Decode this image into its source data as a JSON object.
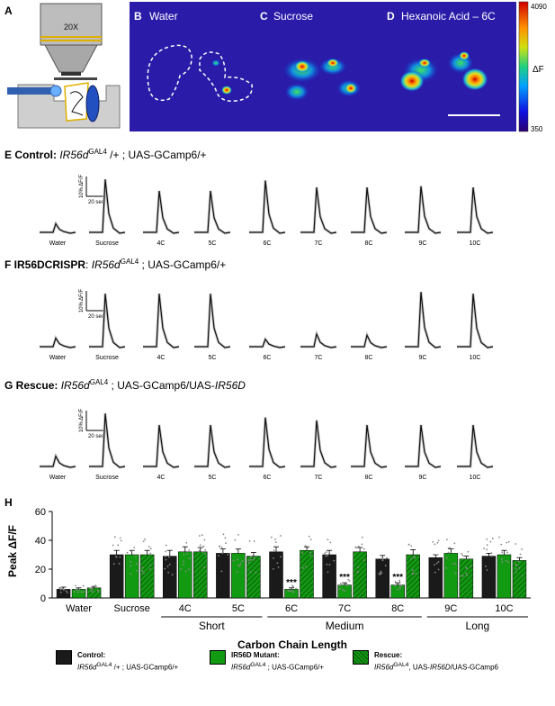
{
  "panels": {
    "A": "A",
    "B": {
      "letter": "B",
      "title": "Water"
    },
    "C": {
      "letter": "C",
      "title": "Sucrose"
    },
    "D": {
      "letter": "D",
      "title": "Hexanoic Acid – 6C"
    },
    "colorbar": {
      "max": "4090",
      "min": "350",
      "label": "ΔF"
    },
    "objective": "20X"
  },
  "rows": [
    {
      "letter": "E",
      "prefix": "Control: ",
      "genotype_bold": "",
      "genotype_italic": "IR56d",
      "sup": "GAL4",
      "suffix": " /+ ; UAS-GCamp6/+",
      "heights": [
        0.15,
        0.92,
        0.72,
        0.72,
        0.9,
        0.78,
        0.78,
        0.8,
        0.78
      ]
    },
    {
      "letter": "F",
      "prefix": "IR56DCRISPR",
      "genotype_bold": ": ",
      "genotype_italic": "IR56d",
      "sup": "GAL4",
      "suffix": " ; UAS-GCamp6/+",
      "heights": [
        0.15,
        0.92,
        0.92,
        0.92,
        0.13,
        0.22,
        0.2,
        0.95,
        0.92
      ]
    },
    {
      "letter": "G",
      "prefix": "Rescue: ",
      "genotype_bold": "",
      "genotype_italic": "IR56d",
      "sup": "GAL4",
      "suffix": " ; UAS-GCamp6/UAS-",
      "suffix_italic": "IR56D",
      "heights": [
        0.18,
        0.92,
        0.72,
        0.72,
        0.85,
        0.8,
        0.72,
        0.72,
        0.72
      ]
    }
  ],
  "trace_labels": [
    "Water",
    "Sucrose",
    "4C",
    "5C",
    "6C",
    "7C",
    "8C",
    "9C",
    "10C"
  ],
  "scale_bar": {
    "y": "10% ΔF/F",
    "x": "20 sec"
  },
  "chart_data": {
    "type": "bar",
    "panel": "H",
    "ylabel": "Peak ΔF/F",
    "xlabel": "Carbon Chain Length",
    "ylim": [
      0,
      60
    ],
    "yticks": [
      0,
      20,
      40,
      60
    ],
    "categories": [
      "Water",
      "Sucrose",
      "4C",
      "5C",
      "6C",
      "7C",
      "8C",
      "9C",
      "10C"
    ],
    "groups": [
      {
        "label": "Short",
        "categories": [
          "4C",
          "5C"
        ]
      },
      {
        "label": "Medium",
        "categories": [
          "6C",
          "7C",
          "8C"
        ]
      },
      {
        "label": "Long",
        "categories": [
          "9C",
          "10C"
        ]
      }
    ],
    "series": [
      {
        "name": "Control",
        "values": [
          6,
          30,
          29,
          31,
          32,
          30,
          27,
          28,
          29
        ],
        "errors": [
          1.5,
          3,
          4,
          3,
          3.5,
          3,
          2.5,
          2,
          2
        ],
        "color": "#1a1a1a",
        "pattern": "solid"
      },
      {
        "name": "IR56D Mutant",
        "values": [
          6,
          30,
          32,
          31,
          6,
          9,
          9,
          31,
          30
        ],
        "errors": [
          1,
          3,
          3.5,
          3,
          1,
          1.5,
          1.5,
          3,
          3
        ],
        "color": "#129a12",
        "pattern": "solid"
      },
      {
        "name": "Rescue",
        "values": [
          7,
          30,
          32,
          29,
          33,
          32,
          30,
          27,
          26
        ],
        "errors": [
          1,
          3,
          3,
          2.5,
          2.5,
          3,
          3.5,
          2,
          2
        ],
        "color": "#129a12",
        "pattern": "hatched"
      }
    ],
    "significance": [
      {
        "category": "6C",
        "series": "IR56D Mutant",
        "label": "***"
      },
      {
        "category": "7C",
        "series": "IR56D Mutant",
        "label": "***"
      },
      {
        "category": "8C",
        "series": "IR56D Mutant",
        "label": "***"
      }
    ]
  },
  "legend": [
    {
      "title": "Control:",
      "line_italic": "IR56d",
      "line_sup": "GAL4",
      "line_rest": "/+ ; UAS-GCamp6/+",
      "color": "#1a1a1a",
      "pattern": "solid"
    },
    {
      "title": "IR56D Mutant:",
      "line_italic": "IR56d",
      "line_sup": "GAL4",
      "line_rest": "; UAS-GCamp6/+",
      "color": "#129a12",
      "pattern": "solid"
    },
    {
      "title": "Rescue:",
      "line_italic": "IR56d",
      "line_sup": "GAL4",
      "line_rest": ", UAS-",
      "line_rest_italic": "IR56D",
      "line_rest2": "/UAS-GCamp6",
      "color": "#129a12",
      "pattern": "hatched"
    }
  ]
}
